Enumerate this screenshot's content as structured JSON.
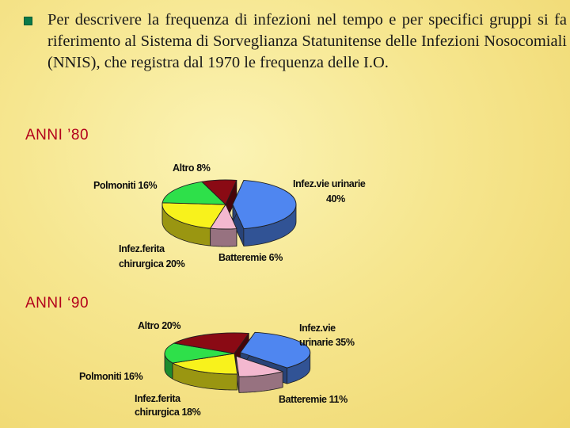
{
  "intro": {
    "text": "Per descrivere la frequenza di infezioni nel tempo e per specifici gruppi si fa riferimento al Sistema di Sorveglianza Statunitense delle Infezioni Nosocomiali (NNIS), che registra dal 1970 le frequenza delle I.O."
  },
  "sections": {
    "s80": "ANNI ’80",
    "s90": "ANNI ‘90"
  },
  "colors": {
    "urinary": "#4f86f0",
    "bacteremia": "#f3b8cf",
    "wound": "#f8f21c",
    "pneumonia": "#2ee04a",
    "other": "#8a0a14"
  },
  "chart_data": [
    {
      "type": "pie",
      "title": "ANNI ’80",
      "slices": [
        {
          "key": "urinary",
          "label_lines": [
            "Infez.vie urinarie",
            "40%"
          ],
          "value": 40
        },
        {
          "key": "bacteremia",
          "label_lines": [
            "Batteremie 6%"
          ],
          "value": 6
        },
        {
          "key": "wound",
          "label_lines": [
            "Infez.ferita",
            "chirurgica 20%"
          ],
          "value": 20
        },
        {
          "key": "pneumonia",
          "label_lines": [
            "Polmoniti 16%"
          ],
          "value": 16
        },
        {
          "key": "other",
          "label_lines": [
            "Altro 8%"
          ],
          "value": 8
        }
      ]
    },
    {
      "type": "pie",
      "title": "ANNI ‘90",
      "slices": [
        {
          "key": "urinary",
          "label_lines": [
            "Infez.vie",
            "urinarie 35%"
          ],
          "value": 35
        },
        {
          "key": "bacteremia",
          "label_lines": [
            "Batteremie 11%"
          ],
          "value": 11
        },
        {
          "key": "wound",
          "label_lines": [
            "Infez.ferita",
            "chirurgica 18%"
          ],
          "value": 18
        },
        {
          "key": "pneumonia",
          "label_lines": [
            "Polmoniti 16%"
          ],
          "value": 16
        },
        {
          "key": "other",
          "label_lines": [
            "Altro 20%"
          ],
          "value": 20
        }
      ]
    }
  ]
}
